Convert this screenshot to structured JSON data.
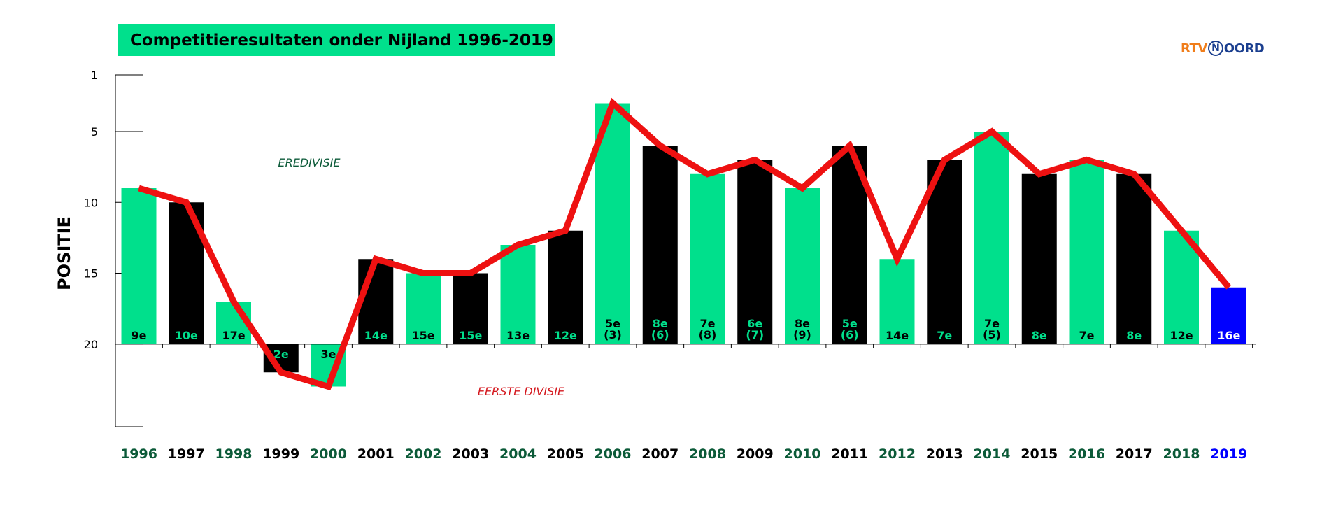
{
  "chart_data": {
    "type": "bar",
    "title": "Competitieresultaten onder Nijland 1996-2019",
    "ylabel": "POSITIE",
    "ylim": [
      1,
      25
    ],
    "y_inverted": true,
    "yticks": [
      "1",
      "5",
      "10",
      "15",
      "20"
    ],
    "annotations": [
      "EREDIVISIE",
      "EERSTE DIVISIE"
    ],
    "categories": [
      "1996",
      "1997",
      "1998",
      "1999",
      "2000",
      "2001",
      "2002",
      "2003",
      "2004",
      "2005",
      "2006",
      "2007",
      "2008",
      "2009",
      "2010",
      "2011",
      "2012",
      "2013",
      "2014",
      "2015",
      "2016",
      "2017",
      "2018",
      "2019"
    ],
    "series": [
      {
        "type": "bar",
        "values": [
          9,
          10,
          17,
          22,
          23,
          14,
          15,
          15,
          13,
          12,
          3,
          6,
          8,
          7,
          9,
          6,
          14,
          7,
          5,
          8,
          7,
          8,
          12,
          16
        ],
        "bar_labels": [
          [
            "9e"
          ],
          [
            "10e"
          ],
          [
            "17e"
          ],
          [
            "2e"
          ],
          [
            "3e"
          ],
          [
            "14e"
          ],
          [
            "15e"
          ],
          [
            "15e"
          ],
          [
            "13e"
          ],
          [
            "12e"
          ],
          [
            "5e",
            "(3)"
          ],
          [
            "8e",
            "(6)"
          ],
          [
            "7e",
            "(8)"
          ],
          [
            "6e",
            "(7)"
          ],
          [
            "8e",
            "(9)"
          ],
          [
            "5e",
            "(6)"
          ],
          [
            "14e"
          ],
          [
            "7e"
          ],
          [
            "7e",
            "(5)"
          ],
          [
            "8e"
          ],
          [
            "7e"
          ],
          [
            "8e"
          ],
          [
            "12e"
          ],
          [
            "16e"
          ]
        ]
      },
      {
        "type": "line",
        "values": [
          9,
          10,
          17,
          22,
          23,
          14,
          15,
          15,
          13,
          12,
          3,
          6,
          8,
          7,
          9,
          6,
          14,
          7,
          5,
          8,
          7,
          8,
          12,
          16
        ]
      }
    ],
    "colors": {
      "green": "#00e08c",
      "black": "#000000",
      "blue": "#0000ff",
      "line": "#ee1111",
      "year_green": "#0b5a38",
      "eredivisie": "#0b5a38",
      "eerste": "#d4161c"
    }
  },
  "logo": {
    "rtv": "RTV",
    "n": "N",
    "oord": "OORD"
  }
}
